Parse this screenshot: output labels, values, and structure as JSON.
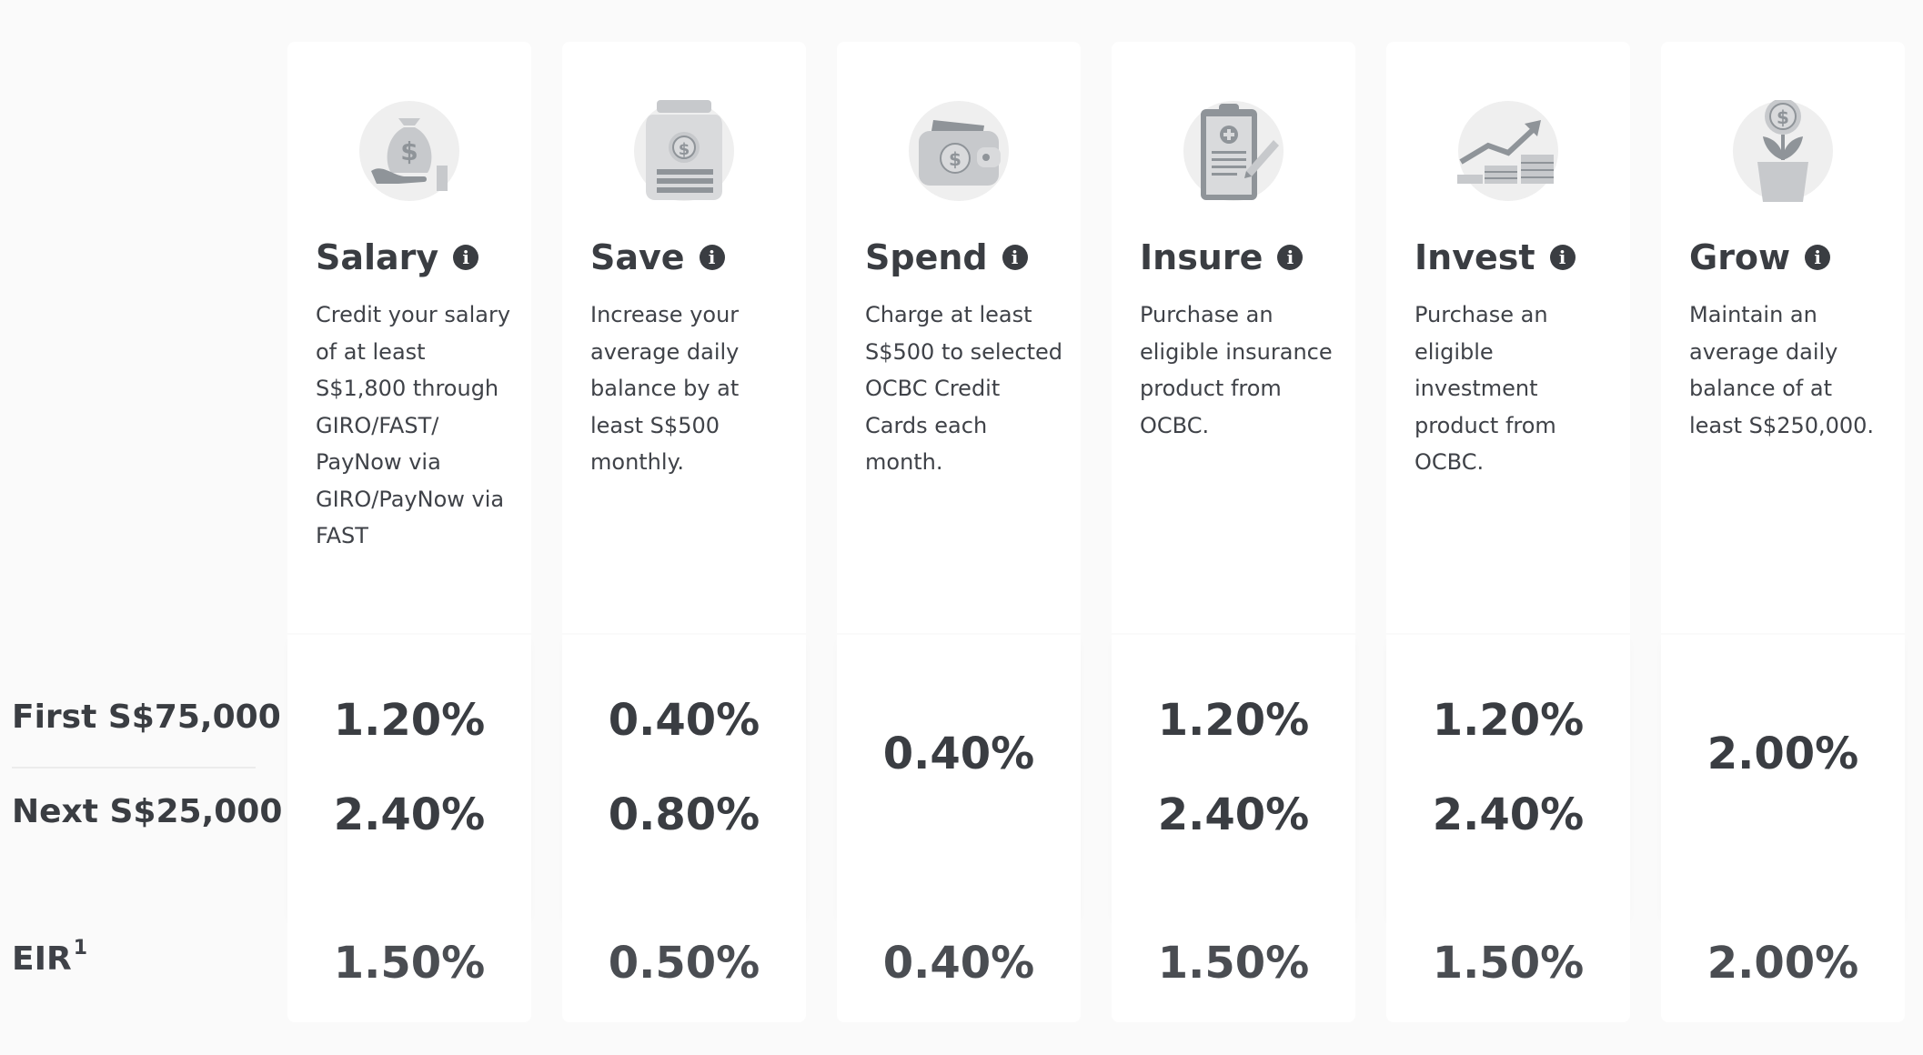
{
  "row_labels": {
    "first": "First S$75,000",
    "next": "Next S$25,000",
    "eir": "EIR",
    "eir_sup": "1"
  },
  "info_glyph": "i",
  "columns": [
    {
      "title": "Salary",
      "icon": "money-bag-hand-icon",
      "description": "Credit your salary of at least S$1,800 through GIRO/FAST/ PayNow via GIRO/PayNow via FAST",
      "rate_first": "1.20%",
      "rate_next": "2.40%",
      "eir": "1.50%"
    },
    {
      "title": "Save",
      "icon": "coin-jar-icon",
      "description": "Increase your average daily balance by at least S$500 monthly.",
      "rate_first": "0.40%",
      "rate_next": "0.80%",
      "eir": "0.50%"
    },
    {
      "title": "Spend",
      "icon": "wallet-icon",
      "description": "Charge at least S$500 to selected OCBC Credit Cards each month.",
      "rate_single": "0.40%",
      "eir": "0.40%"
    },
    {
      "title": "Insure",
      "icon": "clipboard-medical-icon",
      "description": "Purchase an eligible insurance product from OCBC.",
      "rate_first": "1.20%",
      "rate_next": "2.40%",
      "eir": "1.50%"
    },
    {
      "title": "Invest",
      "icon": "growth-chart-icon",
      "description": "Purchase an eligible investment product from OCBC.",
      "rate_first": "1.20%",
      "rate_next": "2.40%",
      "eir": "1.50%"
    },
    {
      "title": "Grow",
      "icon": "money-plant-icon",
      "description": "Maintain an average daily balance of at least S$250,000.",
      "rate_single": "2.00%",
      "eir": "2.00%"
    }
  ],
  "colors": {
    "icon_circle": "#efefef",
    "icon_dark": "#8f9499",
    "icon_mid": "#c7c9cc",
    "text_dark": "#3a3d42"
  }
}
